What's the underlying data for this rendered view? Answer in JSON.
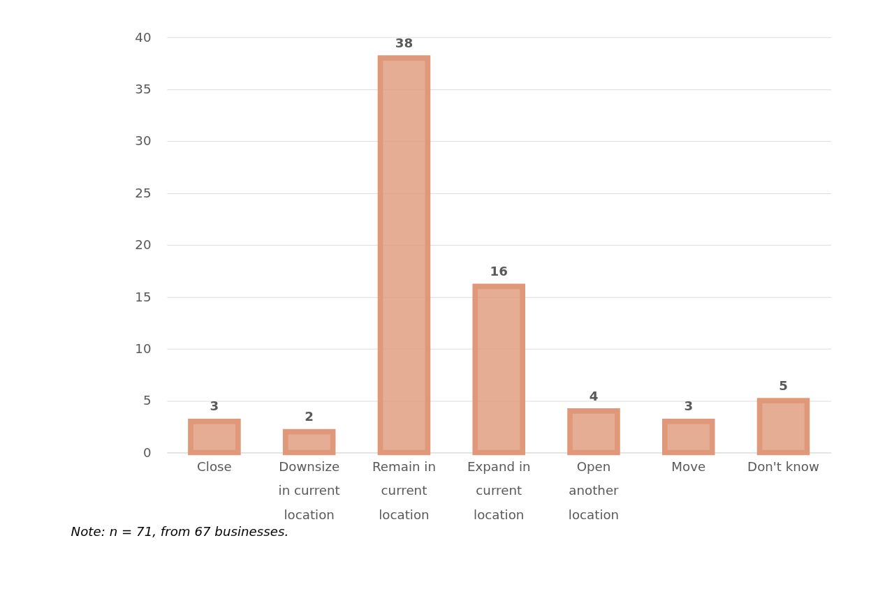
{
  "chart_data": {
    "type": "bar",
    "categories": [
      "Close",
      "Downsize in current location",
      "Remain in current location",
      "Expand in current location",
      "Open another location",
      "Move",
      "Don't know"
    ],
    "values": [
      3,
      2,
      38,
      16,
      4,
      3,
      5
    ],
    "color": "#e0987a",
    "ylim": [
      0,
      40
    ],
    "yticks": [
      0,
      5,
      10,
      15,
      20,
      25,
      30,
      35,
      40
    ],
    "grid": "y",
    "data_labels": true,
    "annotations": [
      "Note: n = 71, from 67 businesses."
    ]
  }
}
